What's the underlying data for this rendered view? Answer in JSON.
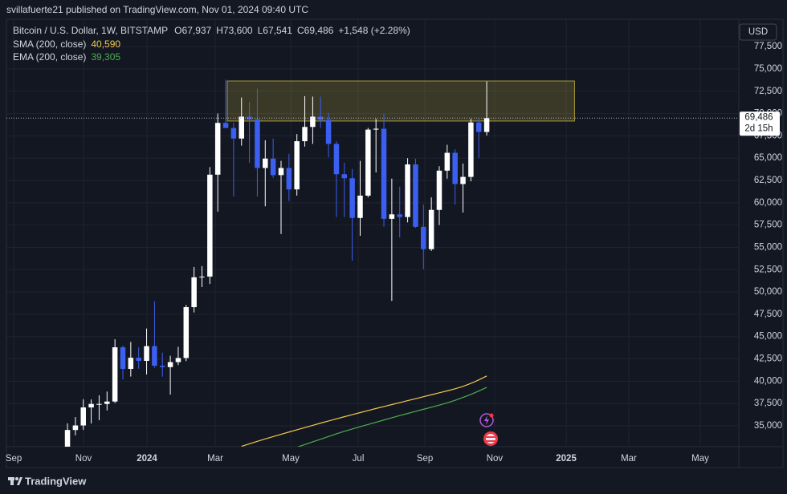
{
  "header": {
    "text": "svillafuerte21 published on TradingView.com, Nov 01, 2024 09:40 UTC"
  },
  "footer": {
    "brand": "TradingView"
  },
  "chart_data": {
    "type": "candlestick",
    "symbol": "Bitcoin / U.S. Dollar, 1W, BITSTAMP",
    "ohlc_legend": [
      {
        "key": "O",
        "value": "67,937"
      },
      {
        "key": "H",
        "value": "73,600"
      },
      {
        "key": "L",
        "value": "67,541"
      },
      {
        "key": "C",
        "value": "69,486"
      }
    ],
    "change": "+1,548 (+2.28%)",
    "currency": "USD",
    "up_color": "#ffffff",
    "down_color": "#3b5ff0",
    "x": [
      0,
      1,
      2,
      3,
      4,
      5,
      6,
      7,
      8,
      9,
      10,
      11,
      12,
      13,
      14,
      15,
      16,
      17,
      18,
      19,
      20,
      21,
      22,
      23,
      24,
      25,
      26,
      27,
      28,
      29,
      30,
      31,
      32,
      33,
      34,
      35,
      36,
      37,
      38,
      39,
      40,
      41,
      42,
      43,
      44,
      45,
      46,
      47,
      48,
      49,
      50,
      51,
      52,
      53
    ],
    "open": [
      29990,
      34530,
      35040,
      37060,
      37450,
      37450,
      37720,
      43800,
      41380,
      42630,
      42280,
      43930,
      41730,
      41580,
      42140,
      42600,
      48300,
      51650,
      51730,
      63150,
      68950,
      68380,
      67200,
      69650,
      69350,
      63900,
      64950,
      63100,
      63900,
      61500,
      66900,
      68500,
      69650,
      69300,
      66600,
      63200,
      62750,
      58300,
      60800,
      68200,
      68300,
      58200,
      58700,
      58400,
      64300,
      57300,
      54800,
      59200,
      63600,
      65600,
      62100,
      62900,
      69000,
      67937
    ],
    "high": [
      35280,
      35980,
      37980,
      37960,
      38420,
      38840,
      44700,
      44000,
      44400,
      43800,
      45900,
      48970,
      43200,
      42850,
      43850,
      48550,
      52800,
      52900,
      64000,
      70000,
      73800,
      68950,
      71800,
      71300,
      72800,
      67000,
      67200,
      64700,
      65500,
      67700,
      71950,
      71900,
      71900,
      70100,
      66900,
      64500,
      63800,
      64700,
      68400,
      69400,
      70000,
      62700,
      61800,
      65000,
      64950,
      59800,
      60600,
      64100,
      66500,
      66000,
      64400,
      69400,
      69500,
      73600
    ],
    "low": [
      29800,
      33930,
      34540,
      35260,
      35630,
      36720,
      37550,
      40200,
      40520,
      41400,
      40760,
      41500,
      40500,
      38500,
      41800,
      42250,
      47700,
      50550,
      50900,
      59000,
      68500,
      60700,
      66400,
      64500,
      60700,
      59600,
      62800,
      56500,
      60200,
      60800,
      66300,
      66600,
      68400,
      65100,
      58400,
      58400,
      53500,
      56300,
      60600,
      63400,
      57300,
      49000,
      56100,
      57800,
      57200,
      52550,
      54600,
      57500,
      62700,
      59800,
      58900,
      62400,
      65000,
      67541
    ],
    "close": [
      34530,
      35040,
      37060,
      37450,
      37450,
      37720,
      43800,
      41380,
      42630,
      42280,
      43930,
      41730,
      41580,
      42140,
      42600,
      48300,
      51650,
      51730,
      63150,
      68950,
      68380,
      67200,
      69650,
      69350,
      63900,
      64950,
      63100,
      63900,
      61500,
      66900,
      68500,
      69650,
      69300,
      66600,
      63200,
      62750,
      58300,
      60800,
      68200,
      68300,
      58200,
      58700,
      58400,
      64300,
      57300,
      54800,
      59200,
      63600,
      65600,
      62100,
      62900,
      69000,
      67937,
      69486
    ],
    "series": [
      {
        "name": "SMA (200, close)",
        "color": "#f2c94c",
        "value_label": "40,590",
        "values": [
          null,
          null,
          null,
          null,
          null,
          null,
          null,
          null,
          null,
          null,
          null,
          null,
          null,
          null,
          null,
          null,
          null,
          null,
          null,
          null,
          null,
          null,
          32700,
          32980,
          33260,
          33530,
          33790,
          34050,
          34300,
          34550,
          34800,
          35050,
          35300,
          35540,
          35780,
          36020,
          36250,
          36480,
          36710,
          36940,
          37160,
          37380,
          37600,
          37820,
          38040,
          38260,
          38480,
          38700,
          38920,
          39150,
          39420,
          39750,
          40150,
          40590
        ]
      },
      {
        "name": "EMA (200, close)",
        "color": "#4caf50",
        "value_label": "39,305",
        "values": [
          null,
          null,
          null,
          null,
          null,
          null,
          null,
          null,
          null,
          null,
          null,
          null,
          null,
          null,
          null,
          null,
          null,
          null,
          null,
          null,
          null,
          null,
          null,
          null,
          null,
          null,
          null,
          null,
          null,
          32600,
          32900,
          33200,
          33500,
          33800,
          34100,
          34380,
          34640,
          34900,
          35150,
          35400,
          35650,
          35900,
          36150,
          36380,
          36620,
          36850,
          37080,
          37320,
          37580,
          37860,
          38180,
          38520,
          38900,
          39305
        ]
      }
    ],
    "zone": {
      "x": [
        20.2,
        64.1
      ],
      "y": [
        69160,
        73650
      ],
      "color": "#c8b43c"
    },
    "last_price": {
      "value": 69486,
      "label": "69,486",
      "countdown": "2d 15h"
    },
    "xlim": [
      -7.72,
      84.87
    ],
    "ylim": [
      32660,
      80570
    ],
    "xticks": [
      {
        "value": -6.8,
        "label": "Sep"
      },
      {
        "value": 2.03,
        "label": "Nov"
      },
      {
        "value": 10.05,
        "label": "2024"
      },
      {
        "value": 18.68,
        "label": "Mar"
      },
      {
        "value": 28.22,
        "label": "May"
      },
      {
        "value": 36.75,
        "label": "Jul"
      },
      {
        "value": 45.18,
        "label": "Sep"
      },
      {
        "value": 54.0,
        "label": "Nov"
      },
      {
        "value": 63.05,
        "label": "2025"
      },
      {
        "value": 70.96,
        "label": "Mar"
      },
      {
        "value": 80.0,
        "label": "May"
      }
    ],
    "yticks": [
      {
        "value": 35000,
        "label": "35,000"
      },
      {
        "value": 37500,
        "label": "37,500"
      },
      {
        "value": 40000,
        "label": "40,000"
      },
      {
        "value": 42500,
        "label": "42,500"
      },
      {
        "value": 45000,
        "label": "45,000"
      },
      {
        "value": 47500,
        "label": "47,500"
      },
      {
        "value": 50000,
        "label": "50,000"
      },
      {
        "value": 52500,
        "label": "52,500"
      },
      {
        "value": 55000,
        "label": "55,000"
      },
      {
        "value": 57500,
        "label": "57,500"
      },
      {
        "value": 60000,
        "label": "60,000"
      },
      {
        "value": 62500,
        "label": "62,500"
      },
      {
        "value": 65000,
        "label": "65,000"
      },
      {
        "value": 67500,
        "label": "67,500"
      },
      {
        "value": 70000,
        "label": "70,000"
      },
      {
        "value": 72500,
        "label": "72,500"
      },
      {
        "value": 75000,
        "label": "75,000"
      },
      {
        "value": 77500,
        "label": "77,500"
      }
    ],
    "grid": true
  }
}
